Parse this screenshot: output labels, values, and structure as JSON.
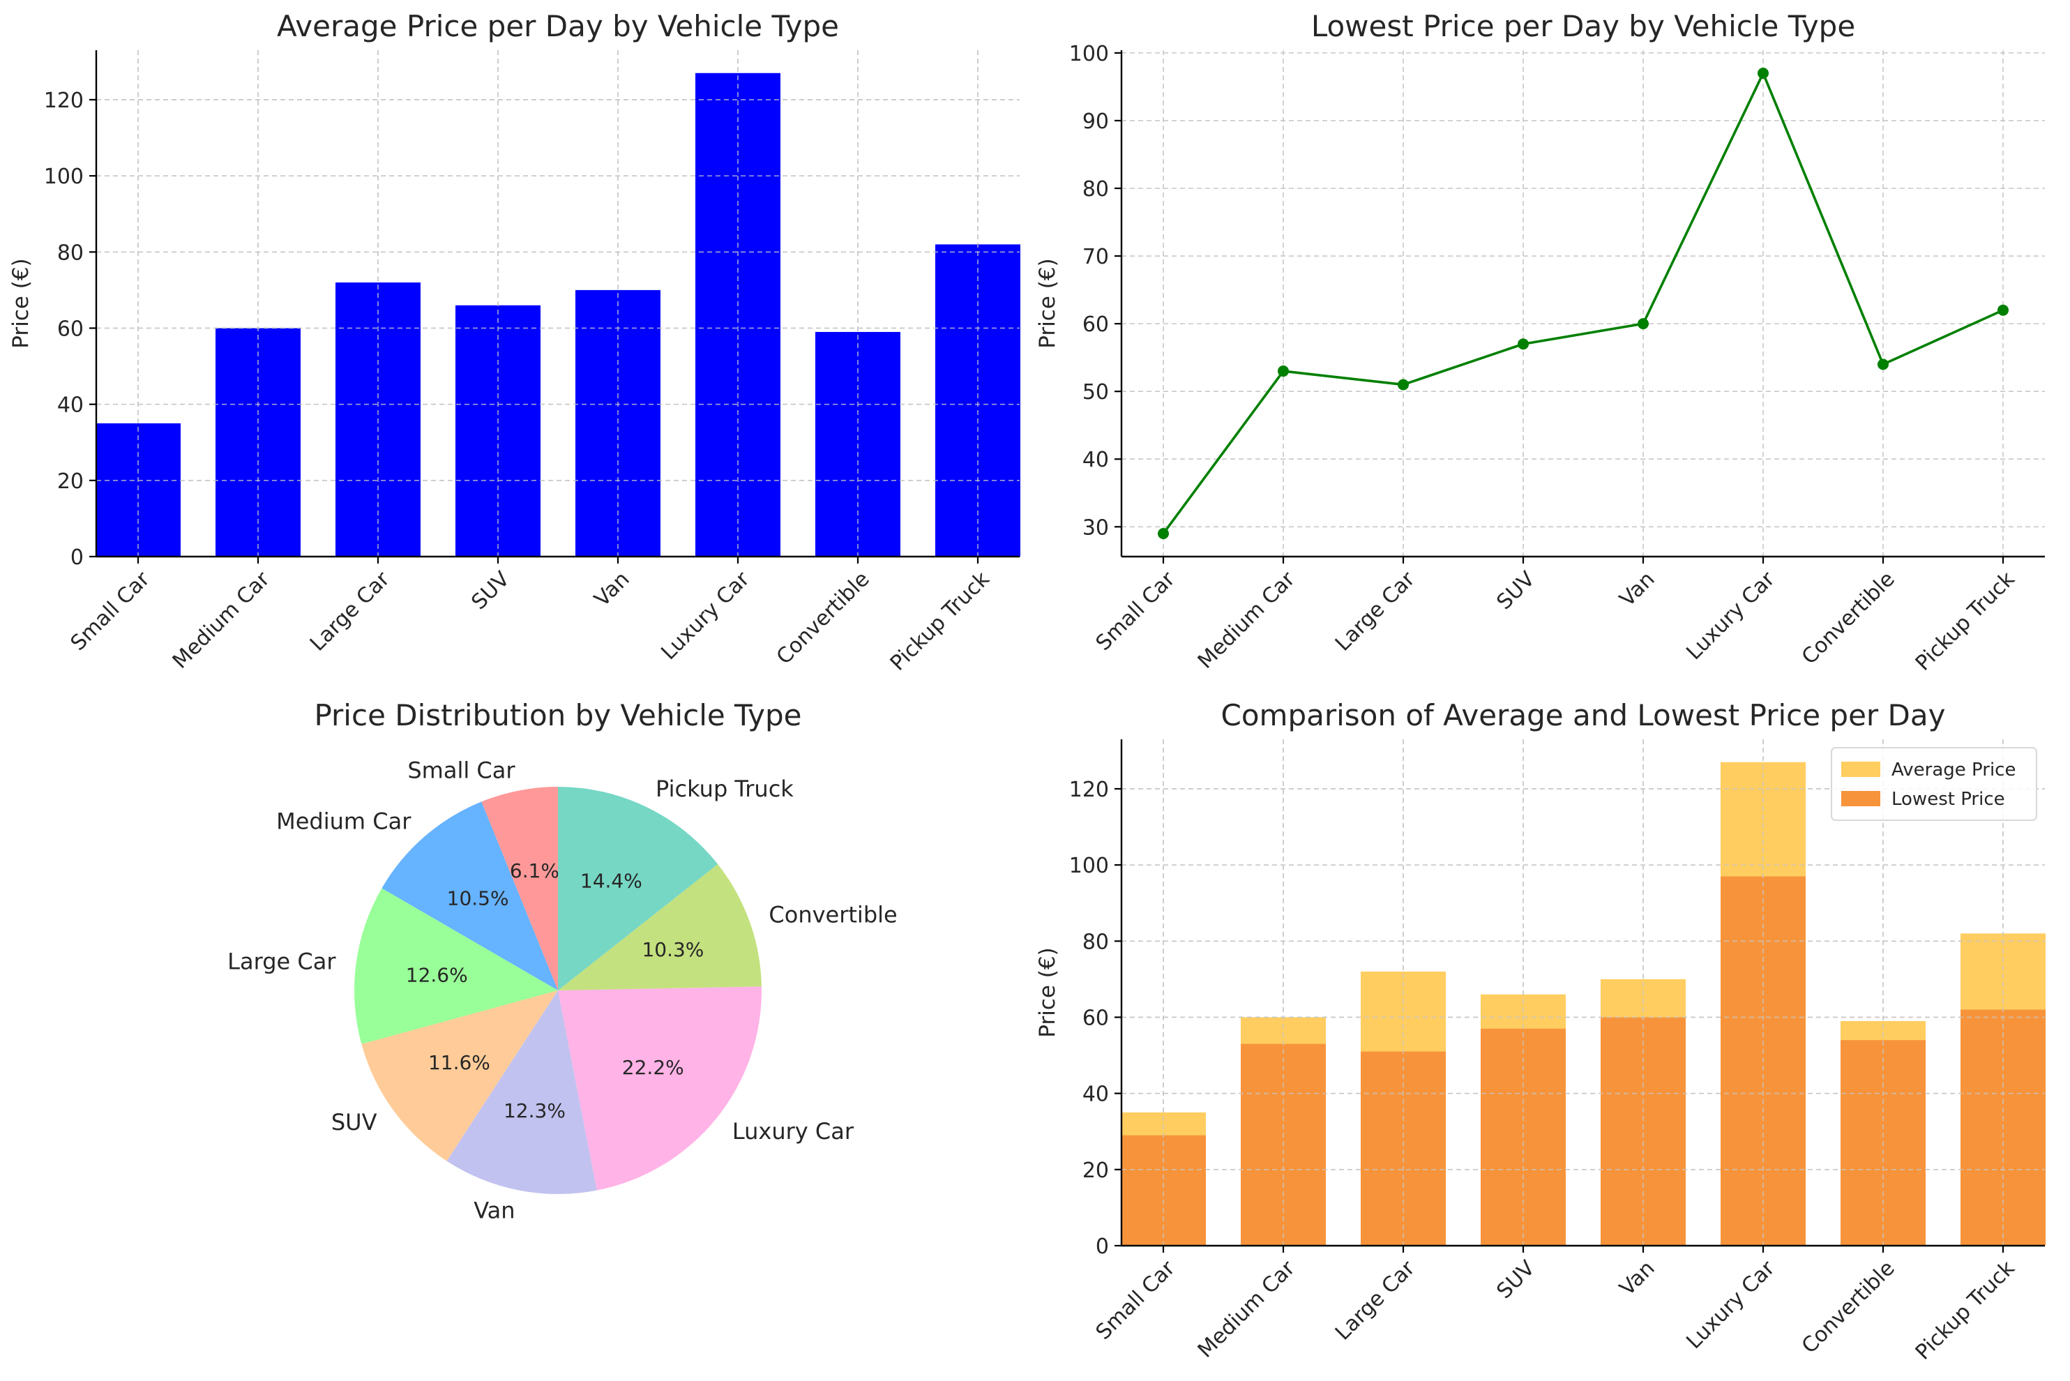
{
  "chart_data": [
    {
      "type": "bar",
      "title": "Average Price per Day by Vehicle Type",
      "ylabel": "Price (€)",
      "categories": [
        "Small Car",
        "Medium Car",
        "Large Car",
        "SUV",
        "Van",
        "Luxury Car",
        "Convertible",
        "Pickup Truck"
      ],
      "values": [
        35,
        60,
        72,
        66,
        70,
        127,
        59,
        82
      ],
      "ylim": [
        0,
        133
      ],
      "yticks": [
        0,
        20,
        40,
        60,
        80,
        100,
        120
      ],
      "color": "#0000ff",
      "grid": true
    },
    {
      "type": "line",
      "title": "Lowest Price per Day by Vehicle Type",
      "ylabel": "Price (€)",
      "categories": [
        "Small Car",
        "Medium Car",
        "Large Car",
        "SUV",
        "Van",
        "Luxury Car",
        "Convertible",
        "Pickup Truck"
      ],
      "values": [
        29,
        53,
        51,
        57,
        60,
        97,
        54,
        62
      ],
      "ylim": [
        25.6,
        100.4
      ],
      "yticks": [
        30,
        40,
        50,
        60,
        70,
        80,
        90,
        100
      ],
      "color": "#008000",
      "grid": true
    },
    {
      "type": "pie",
      "title": "Price Distribution by Vehicle Type",
      "labels": [
        "Small Car",
        "Medium Car",
        "Large Car",
        "SUV",
        "Van",
        "Luxury Car",
        "Convertible",
        "Pickup Truck"
      ],
      "values": [
        35,
        60,
        72,
        66,
        70,
        127,
        59,
        82
      ],
      "percent_labels": [
        "6.1%",
        "10.5%",
        "12.6%",
        "11.6%",
        "12.3%",
        "22.2%",
        "10.3%",
        "14.4%"
      ],
      "colors": [
        "#ff9999",
        "#66b3ff",
        "#99ff99",
        "#ffcc99",
        "#c2c2f0",
        "#ffb3e6",
        "#c4e17f",
        "#76d7c4"
      ]
    },
    {
      "type": "bar",
      "title": "Comparison of Average and Lowest Price per Day",
      "ylabel": "Price (€)",
      "categories": [
        "Small Car",
        "Medium Car",
        "Large Car",
        "SUV",
        "Van",
        "Luxury Car",
        "Convertible",
        "Pickup Truck"
      ],
      "series": [
        {
          "name": "Average Price",
          "values": [
            35,
            60,
            72,
            66,
            70,
            127,
            59,
            82
          ],
          "color": "#ffcd60"
        },
        {
          "name": "Lowest Price",
          "values": [
            29,
            53,
            51,
            57,
            60,
            97,
            54,
            62
          ],
          "color": "#f7943b"
        }
      ],
      "legend": "top-right",
      "ylim": [
        0,
        133
      ],
      "yticks": [
        0,
        20,
        40,
        60,
        80,
        100,
        120
      ],
      "grid": true
    }
  ]
}
